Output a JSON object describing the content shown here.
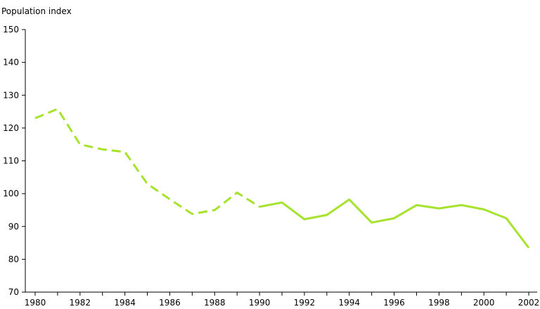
{
  "chart_data": {
    "type": "line",
    "title": "",
    "ylabel": "Population index",
    "xlabel": "",
    "ylim": [
      70,
      150
    ],
    "yticks": [
      70,
      80,
      90,
      100,
      110,
      120,
      130,
      140,
      150
    ],
    "xlim": [
      1980,
      2002
    ],
    "xticks": [
      1980,
      1982,
      1984,
      1986,
      1988,
      1990,
      1992,
      1994,
      1996,
      1998,
      2000,
      2002
    ],
    "grid": false,
    "line_color": "#a6e22e",
    "series": [
      {
        "style": "dashed",
        "x": [
          1980,
          1981,
          1982,
          1983,
          1984,
          1985,
          1986,
          1987,
          1988,
          1989,
          1990
        ],
        "values": [
          123,
          125.8,
          115,
          113.5,
          112.7,
          103,
          98.3,
          93.8,
          95,
          100.3,
          96
        ]
      },
      {
        "style": "solid",
        "x": [
          1990,
          1991,
          1992,
          1993,
          1994,
          1995,
          1996,
          1997,
          1998,
          1999,
          2000,
          2001,
          2002
        ],
        "values": [
          96,
          97.3,
          92.2,
          93.5,
          98.2,
          91.2,
          92.5,
          96.5,
          95.5,
          96.5,
          95.2,
          92.5,
          83.5
        ]
      }
    ]
  }
}
